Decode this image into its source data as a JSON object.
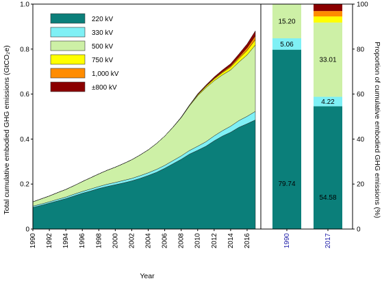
{
  "chart_data": [
    {
      "type": "area",
      "stacked": true,
      "xlabel": "Year",
      "ylabel": "Total cumulative embodied GHG emissions (GtCO₂e)",
      "xlim": [
        1990,
        2017
      ],
      "ylim": [
        0,
        1.0
      ],
      "x_ticks": [
        "1990",
        "1992",
        "1994",
        "1996",
        "1998",
        "2000",
        "2002",
        "2004",
        "2006",
        "2008",
        "2010",
        "2012",
        "2014",
        "2016"
      ],
      "y_ticks": [
        "0",
        "0.2",
        "0.4",
        "0.6",
        "0.8",
        "1.0"
      ],
      "x": [
        1990,
        1991,
        1992,
        1993,
        1994,
        1995,
        1996,
        1997,
        1998,
        1999,
        2000,
        2001,
        2002,
        2003,
        2004,
        2005,
        2006,
        2007,
        2008,
        2009,
        2010,
        2011,
        2012,
        2013,
        2014,
        2015,
        2016,
        2017
      ],
      "series": [
        {
          "name": "220 kV",
          "color": "#0b7f7a",
          "values": [
            0.096,
            0.105,
            0.115,
            0.125,
            0.135,
            0.147,
            0.159,
            0.169,
            0.18,
            0.189,
            0.197,
            0.205,
            0.214,
            0.225,
            0.238,
            0.252,
            0.27,
            0.29,
            0.31,
            0.333,
            0.35,
            0.368,
            0.392,
            0.413,
            0.43,
            0.452,
            0.468,
            0.485
          ]
        },
        {
          "name": "330 kV",
          "color": "#7ff0f5",
          "values": [
            0.006,
            0.006,
            0.006,
            0.007,
            0.007,
            0.008,
            0.008,
            0.009,
            0.009,
            0.01,
            0.01,
            0.011,
            0.011,
            0.012,
            0.012,
            0.013,
            0.013,
            0.014,
            0.015,
            0.016,
            0.018,
            0.02,
            0.022,
            0.024,
            0.027,
            0.03,
            0.033,
            0.038
          ]
        },
        {
          "name": "500 kV",
          "color": "#cdf0a6",
          "values": [
            0.019,
            0.023,
            0.026,
            0.03,
            0.034,
            0.038,
            0.044,
            0.05,
            0.056,
            0.062,
            0.068,
            0.075,
            0.083,
            0.092,
            0.102,
            0.115,
            0.13,
            0.148,
            0.17,
            0.198,
            0.224,
            0.24,
            0.245,
            0.248,
            0.25,
            0.26,
            0.273,
            0.295
          ]
        },
        {
          "name": "750 kV",
          "color": "#ffff00",
          "values": [
            0,
            0,
            0,
            0,
            0,
            0,
            0,
            0,
            0,
            0,
            0,
            0,
            0,
            0,
            0,
            0,
            0,
            0.001,
            0.002,
            0.003,
            0.004,
            0.006,
            0.008,
            0.01,
            0.013,
            0.016,
            0.02,
            0.024
          ]
        },
        {
          "name": "1,000 kV",
          "color": "#ff8c00",
          "values": [
            0,
            0,
            0,
            0,
            0,
            0,
            0,
            0,
            0,
            0,
            0,
            0,
            0,
            0,
            0,
            0,
            0,
            0,
            0,
            0.001,
            0.002,
            0.002,
            0.003,
            0.004,
            0.005,
            0.007,
            0.012,
            0.017
          ]
        },
        {
          "name": "±800 kV",
          "color": "#8b0000",
          "values": [
            0,
            0,
            0,
            0,
            0,
            0,
            0,
            0,
            0,
            0,
            0,
            0,
            0,
            0,
            0,
            0,
            0,
            0,
            0,
            0,
            0.003,
            0.004,
            0.006,
            0.008,
            0.01,
            0.013,
            0.017,
            0.022
          ]
        }
      ],
      "legend": {
        "position": "top-left"
      },
      "grid": false
    },
    {
      "type": "bar",
      "stacked": true,
      "categories": [
        "1990",
        "2017"
      ],
      "ylabel": "Proportion of cumulative embodied GHG emissions (%)",
      "ylim": [
        0,
        100
      ],
      "y_ticks": [
        "0",
        "20",
        "40",
        "60",
        "80",
        "100"
      ],
      "series": [
        {
          "name": "220 kV",
          "color": "#0b7f7a",
          "values": [
            79.74,
            54.58
          ],
          "labels": [
            "79.74",
            "54.58"
          ]
        },
        {
          "name": "330 kV",
          "color": "#7ff0f5",
          "values": [
            5.06,
            4.22
          ],
          "labels": [
            "5.06",
            "4.22"
          ]
        },
        {
          "name": "500 kV",
          "color": "#cdf0a6",
          "values": [
            15.2,
            33.01
          ],
          "labels": [
            "15.20",
            "33.01"
          ]
        },
        {
          "name": "750 kV",
          "color": "#ffff00",
          "values": [
            0,
            2.7
          ],
          "labels": [
            "",
            ""
          ]
        },
        {
          "name": "1,000 kV",
          "color": "#ff8c00",
          "values": [
            0,
            2.4
          ],
          "labels": [
            "",
            ""
          ]
        },
        {
          "name": "±800 kV",
          "color": "#8b0000",
          "values": [
            0,
            3.09
          ],
          "labels": [
            "",
            ""
          ]
        }
      ]
    }
  ]
}
